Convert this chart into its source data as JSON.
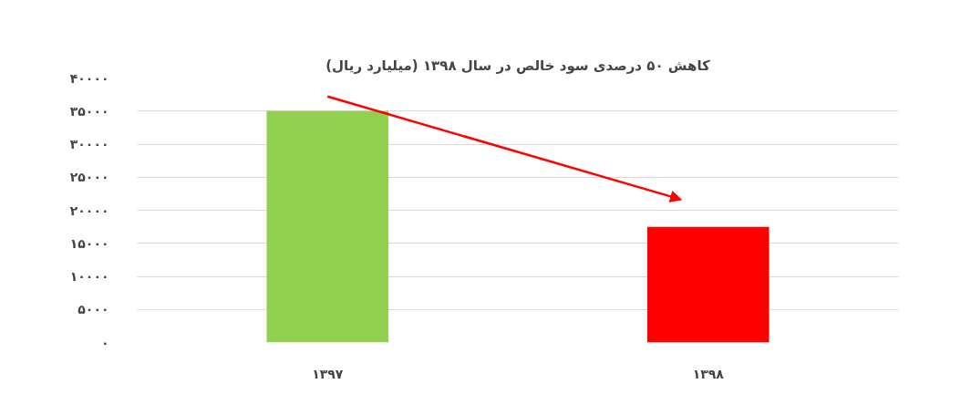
{
  "chart_data": {
    "type": "bar",
    "title": "کاهش ۵۰ درصدی سود خالص در سال ۱۳۹۸ (میلیارد ریال)",
    "categories": [
      "۱۳۹۷",
      "۱۳۹۸"
    ],
    "values": [
      35000,
      17500
    ],
    "colors": [
      "#92d050",
      "#ff0000"
    ],
    "ylim": [
      0,
      40000
    ],
    "yticks": [
      {
        "value": 0,
        "label": "۰"
      },
      {
        "value": 5000,
        "label": "۵۰۰۰"
      },
      {
        "value": 10000,
        "label": "۱۰۰۰۰"
      },
      {
        "value": 15000,
        "label": "۱۵۰۰۰"
      },
      {
        "value": 20000,
        "label": "۲۰۰۰۰"
      },
      {
        "value": 25000,
        "label": "۲۵۰۰۰"
      },
      {
        "value": 30000,
        "label": "۳۰۰۰۰"
      },
      {
        "value": 35000,
        "label": "۳۵۰۰۰"
      },
      {
        "value": 40000,
        "label": "۴۰۰۰۰"
      }
    ],
    "grid": "y"
  }
}
